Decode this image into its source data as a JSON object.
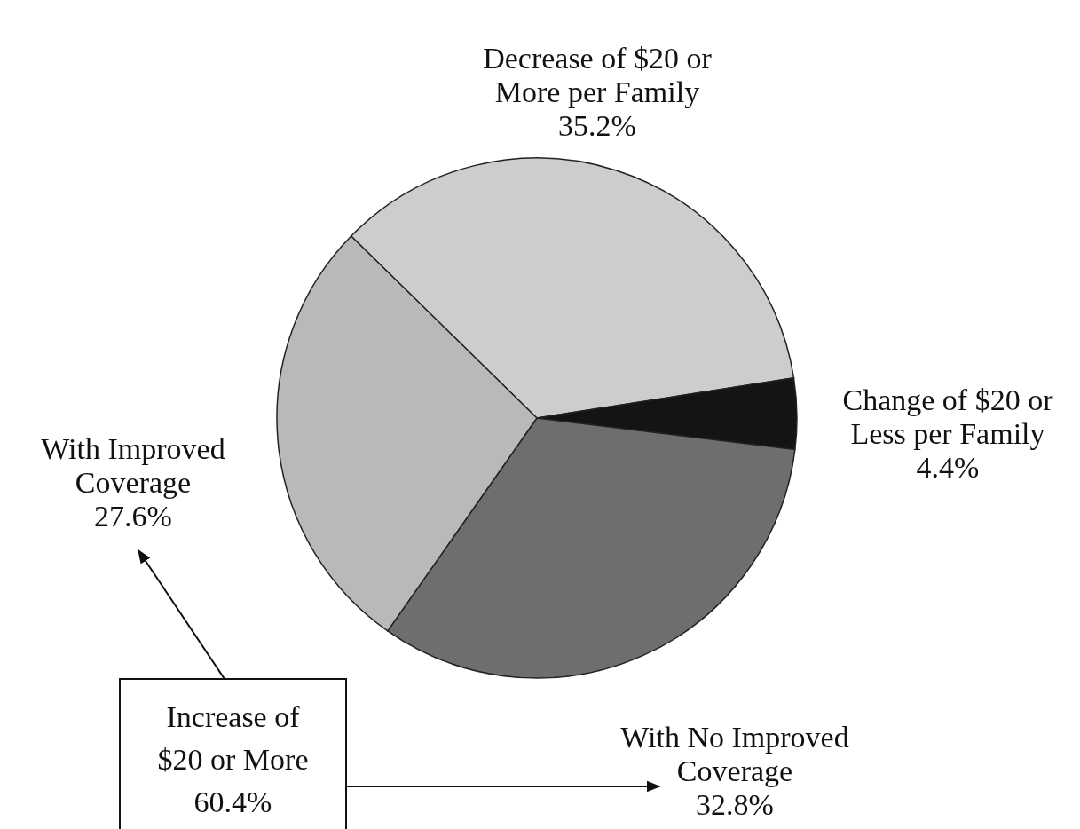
{
  "chart_data": {
    "type": "pie",
    "categories": [
      "Decrease of $20 or More per Family",
      "Change of $20 or Less per Family",
      "With No Improved Coverage",
      "With Improved Coverage"
    ],
    "values": [
      35.2,
      4.4,
      32.8,
      27.6
    ],
    "value_labels": [
      "35.2%",
      "4.4%",
      "32.8%",
      "27.6%"
    ],
    "colors": [
      "#cdcdcd",
      "#141414",
      "#6e6e6e",
      "#b9b9b9"
    ],
    "annotations": [
      "Increase of $20 or More 60.4%"
    ]
  }
}
